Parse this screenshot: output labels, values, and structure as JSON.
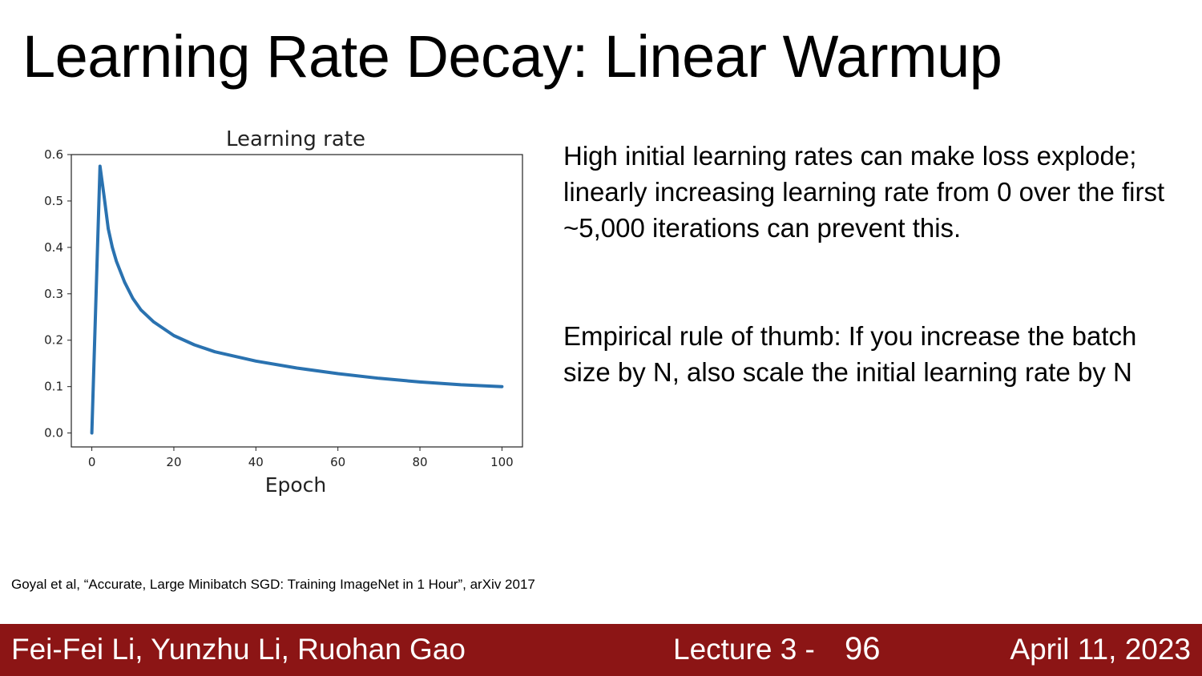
{
  "slide": {
    "title": "Learning Rate Decay: Linear Warmup",
    "paragraphs": [
      "High initial learning rates can make loss explode; linearly increasing learning rate from 0 over the first ~5,000 iterations can prevent this.",
      "Empirical rule of thumb: If you increase the batch size by N, also scale the initial learning rate by N"
    ],
    "citation": "Goyal et al, “Accurate, Large Minibatch SGD: Training ImageNet in 1 Hour”, arXiv 2017"
  },
  "footer": {
    "authors": "Fei-Fei Li, Yunzhu Li, Ruohan Gao",
    "lecture": "Lecture 3 -",
    "page": "96",
    "date": "April 11, 2023"
  },
  "chart_data": {
    "type": "line",
    "title": "Learning rate",
    "xlabel": "Epoch",
    "ylabel": "",
    "xlim": [
      -5,
      105
    ],
    "ylim": [
      -0.03,
      0.6
    ],
    "x_ticks": [
      0,
      20,
      40,
      60,
      80,
      100
    ],
    "y_ticks": [
      0.0,
      0.1,
      0.2,
      0.3,
      0.4,
      0.5,
      0.6
    ],
    "y_tick_labels": [
      "0.0",
      "0.1",
      "0.2",
      "0.3",
      "0.4",
      "0.5",
      "0.6"
    ],
    "grid": false,
    "color": "#2a72b0",
    "series": [
      {
        "x": [
          0,
          2,
          3,
          4,
          5,
          6,
          8,
          10,
          12,
          15,
          20,
          25,
          30,
          40,
          50,
          60,
          70,
          80,
          90,
          100
        ],
        "y": [
          0.0,
          0.575,
          0.51,
          0.44,
          0.4,
          0.37,
          0.325,
          0.29,
          0.265,
          0.24,
          0.21,
          0.19,
          0.175,
          0.155,
          0.14,
          0.128,
          0.118,
          0.11,
          0.104,
          0.1
        ]
      }
    ]
  }
}
